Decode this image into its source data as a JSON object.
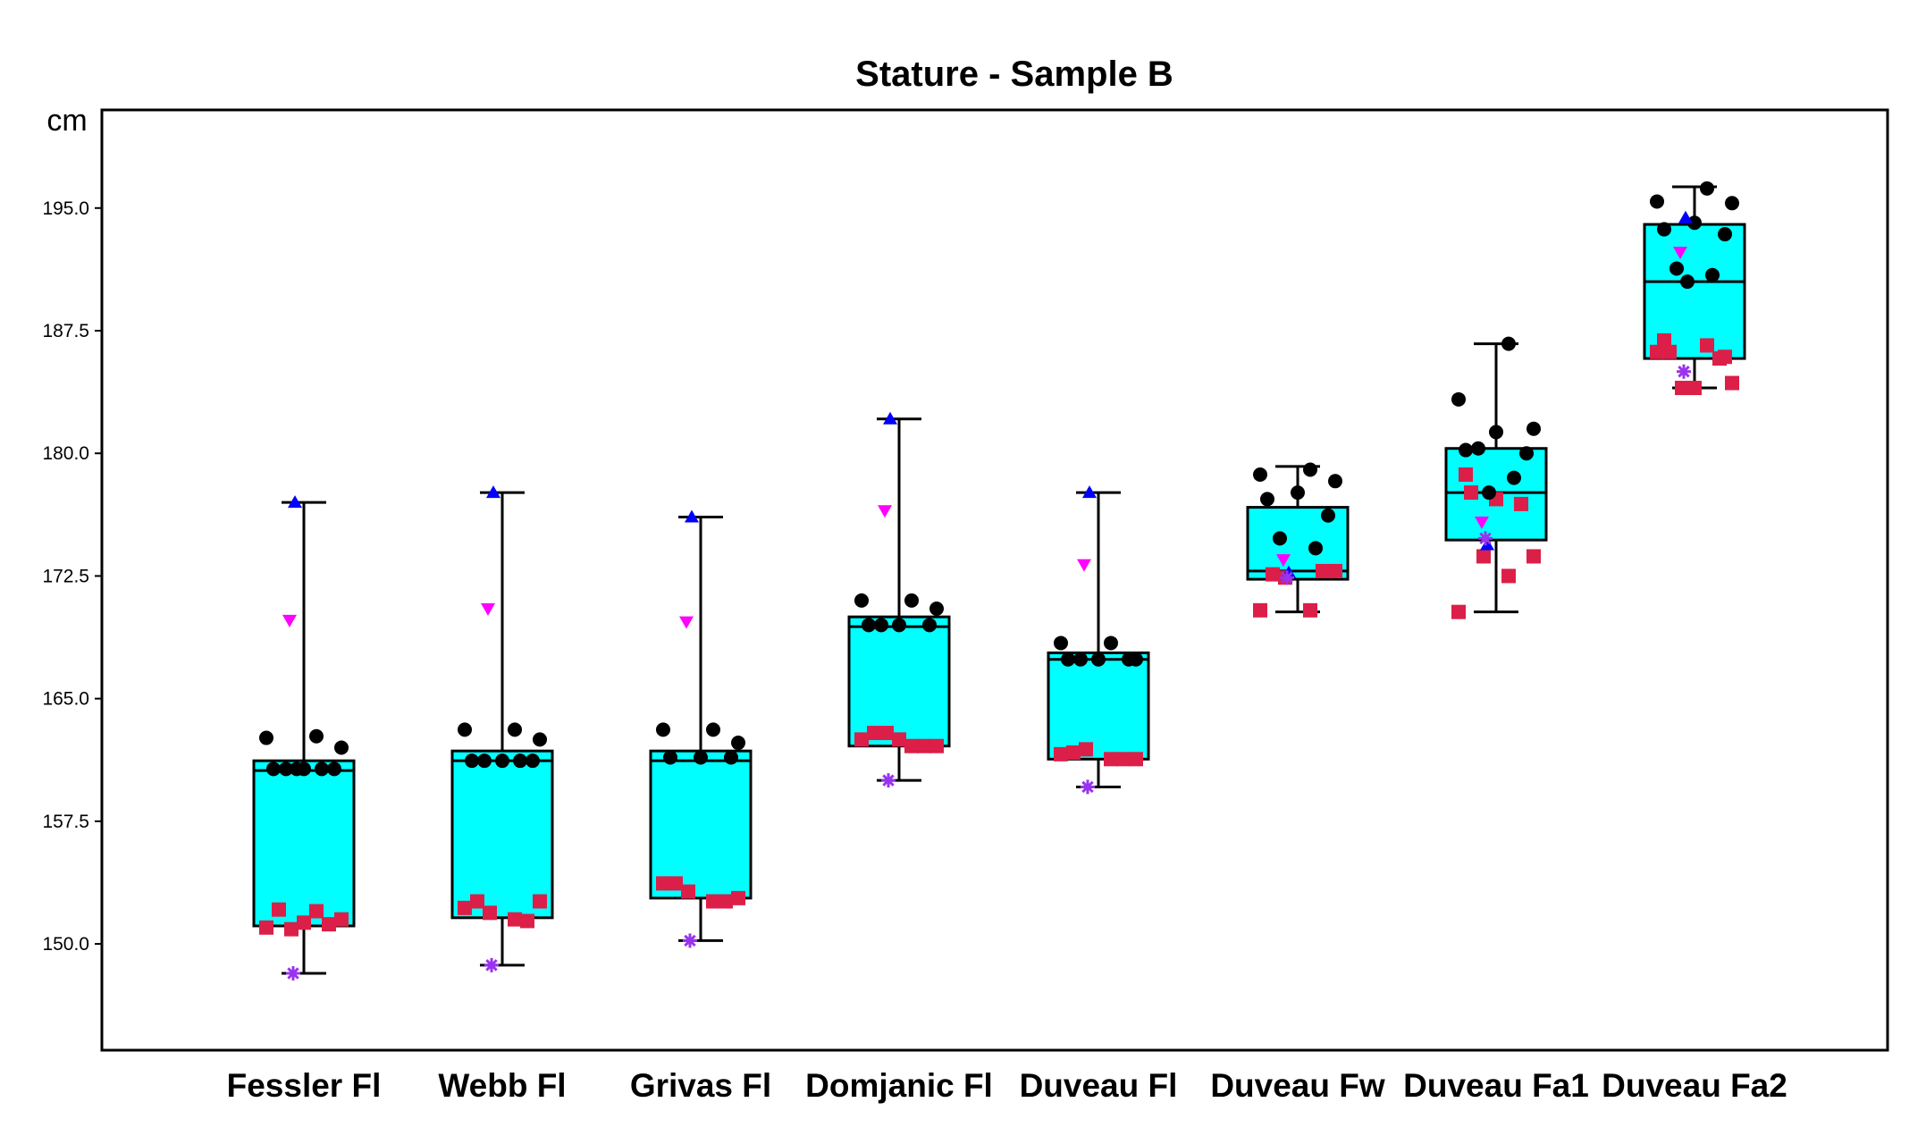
{
  "chart_data": {
    "type": "box",
    "title": "Stature - Sample B",
    "ylabel": "cm",
    "ylim": [
      143.5,
      201.0
    ],
    "yticks": [
      "150.0",
      "157.5",
      "165.0",
      "172.5",
      "180.0",
      "187.5",
      "195.0"
    ],
    "categories": [
      "Fessler Fl",
      "Webb Fl",
      "Grivas Fl",
      "Domjanic Fl",
      "Duveau Fl",
      "Duveau Fw",
      "Duveau Fa1",
      "Duveau Fa2"
    ],
    "colors": {
      "box_fill": "#00ffff",
      "male_marker": "#000000",
      "female_marker": "#dc1f48",
      "max_marker": "#0000ff",
      "upper_marker": "#ff00ff",
      "min_marker": "#9933ee"
    },
    "series": [
      {
        "name": "Fessler Fl",
        "whisker_low": 148.2,
        "q1": 151.1,
        "median": 160.6,
        "q3": 161.2,
        "whisker_high": 177.0,
        "max_triangle": 177.0,
        "upper_triangle": 169.8,
        "min_star": 148.2,
        "male_points": [
          162.7,
          162.6,
          162.0,
          160.7,
          160.7,
          160.7,
          160.7,
          160.7,
          160.7
        ],
        "female_points": [
          152.1,
          151.2,
          150.9,
          152.0,
          151.0,
          151.5,
          151.3
        ]
      },
      {
        "name": "Webb Fl",
        "whisker_low": 148.7,
        "q1": 151.6,
        "median": 161.2,
        "q3": 161.8,
        "whisker_high": 177.6,
        "max_triangle": 177.6,
        "upper_triangle": 170.5,
        "min_star": 148.7,
        "male_points": [
          163.1,
          163.1,
          162.5,
          161.2,
          161.2,
          161.2,
          161.2,
          161.2
        ],
        "female_points": [
          152.6,
          151.4,
          151.9,
          151.5,
          152.2,
          152.6
        ]
      },
      {
        "name": "Grivas Fl",
        "whisker_low": 150.2,
        "q1": 152.8,
        "median": 161.2,
        "q3": 161.8,
        "whisker_high": 176.1,
        "max_triangle": 176.1,
        "upper_triangle": 169.7,
        "min_star": 150.2,
        "male_points": [
          163.1,
          163.1,
          162.3,
          161.4,
          161.4,
          161.4
        ],
        "female_points": [
          153.7,
          152.6,
          153.2,
          152.6,
          153.7,
          152.8
        ]
      },
      {
        "name": "Domjanic Fl",
        "whisker_low": 160.0,
        "q1": 162.1,
        "median": 169.4,
        "q3": 170.0,
        "whisker_high": 182.1,
        "max_triangle": 182.1,
        "upper_triangle": 176.5,
        "min_star": 160.0,
        "male_points": [
          171.0,
          171.0,
          170.5,
          169.5,
          169.5,
          169.5,
          169.5
        ],
        "female_points": [
          162.9,
          162.1,
          162.9,
          162.1,
          162.5,
          162.1,
          162.5
        ]
      },
      {
        "name": "Duveau Fl",
        "whisker_low": 159.6,
        "q1": 161.3,
        "median": 167.4,
        "q3": 167.8,
        "whisker_high": 177.6,
        "max_triangle": 177.6,
        "upper_triangle": 173.2,
        "min_star": 159.6,
        "male_points": [
          168.4,
          168.4,
          167.4,
          167.4,
          167.4,
          167.4,
          167.4
        ],
        "female_points": [
          161.7,
          161.3,
          161.9,
          161.3,
          161.6,
          161.3
        ]
      },
      {
        "name": "Duveau Fw",
        "whisker_low": 170.3,
        "q1": 172.3,
        "median": 172.8,
        "q3": 176.7,
        "whisker_high": 179.2,
        "max_triangle": 172.7,
        "upper_triangle": 173.5,
        "min_star": 172.4,
        "male_points": [
          179.0,
          178.7,
          178.3,
          177.6,
          177.2,
          176.2,
          174.8,
          174.2
        ],
        "female_points": [
          172.6,
          172.8,
          172.4,
          170.4,
          170.4,
          172.8
        ]
      },
      {
        "name": "Duveau Fa1",
        "whisker_low": 170.3,
        "q1": 174.7,
        "median": 177.6,
        "q3": 180.3,
        "whisker_high": 186.7,
        "max_triangle": 174.4,
        "upper_triangle": 175.8,
        "min_star": 174.8,
        "male_points": [
          186.7,
          183.3,
          181.5,
          181.3,
          180.2,
          180.0,
          180.3,
          178.5,
          177.6
        ],
        "female_points": [
          177.6,
          176.9,
          173.7,
          172.5,
          170.3,
          173.7,
          177.2,
          178.7
        ]
      },
      {
        "name": "Duveau Fa2",
        "whisker_low": 184.0,
        "q1": 185.8,
        "median": 190.5,
        "q3": 194.0,
        "whisker_high": 196.3,
        "max_triangle": 194.4,
        "upper_triangle": 192.3,
        "min_star": 185.0,
        "male_points": [
          196.2,
          195.4,
          195.3,
          194.1,
          193.7,
          193.4,
          191.3,
          190.9,
          190.5
        ],
        "female_points": [
          186.2,
          185.8,
          184.0,
          186.6,
          186.2,
          184.3,
          184.0,
          186.9,
          185.9
        ]
      }
    ]
  }
}
